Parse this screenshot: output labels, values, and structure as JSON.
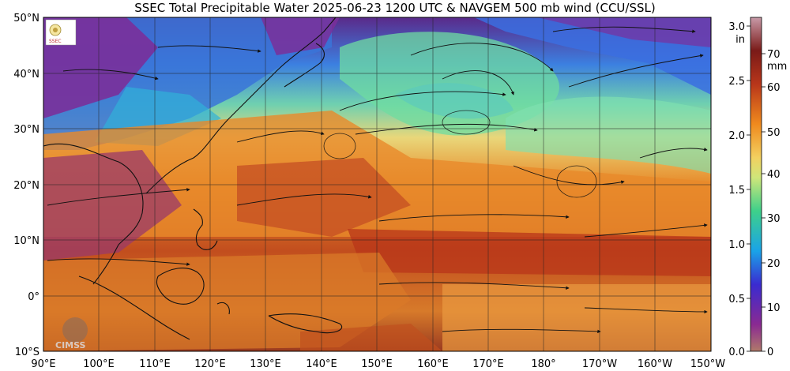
{
  "header": {
    "title": "SSEC Total Precipitable Water  2025-06-23 1200 UTC & NAVGEM 500 mb wind (CCU/SSL)"
  },
  "map": {
    "lat_labels": [
      "50°N",
      "40°N",
      "30°N",
      "20°N",
      "10°N",
      "0°",
      "10°S"
    ],
    "lon_labels": [
      "90°E",
      "100°E",
      "110°E",
      "120°E",
      "130°E",
      "140°E",
      "150°E",
      "160°E",
      "170°E",
      "180°",
      "170°W",
      "160°W",
      "150°W"
    ]
  },
  "colorbar": {
    "in_unit": "in",
    "mm_unit": "mm",
    "in_ticks": [
      "3.0",
      "2.5",
      "2.0",
      "1.5",
      "1.0",
      "0.5",
      "0.0"
    ],
    "mm_ticks": [
      "70",
      "60",
      "50",
      "40",
      "30",
      "20",
      "10",
      "0"
    ],
    "colors": [
      "#b07a6a",
      "#8a2a92",
      "#3a2bd0",
      "#1aa3e8",
      "#7de0a0",
      "#f2e27a",
      "#f08a1e",
      "#b8361a",
      "#8a1a1a",
      "#c89aa8"
    ]
  },
  "logos": {
    "cimss": "CIMSS",
    "ssl": "SSEC"
  }
}
